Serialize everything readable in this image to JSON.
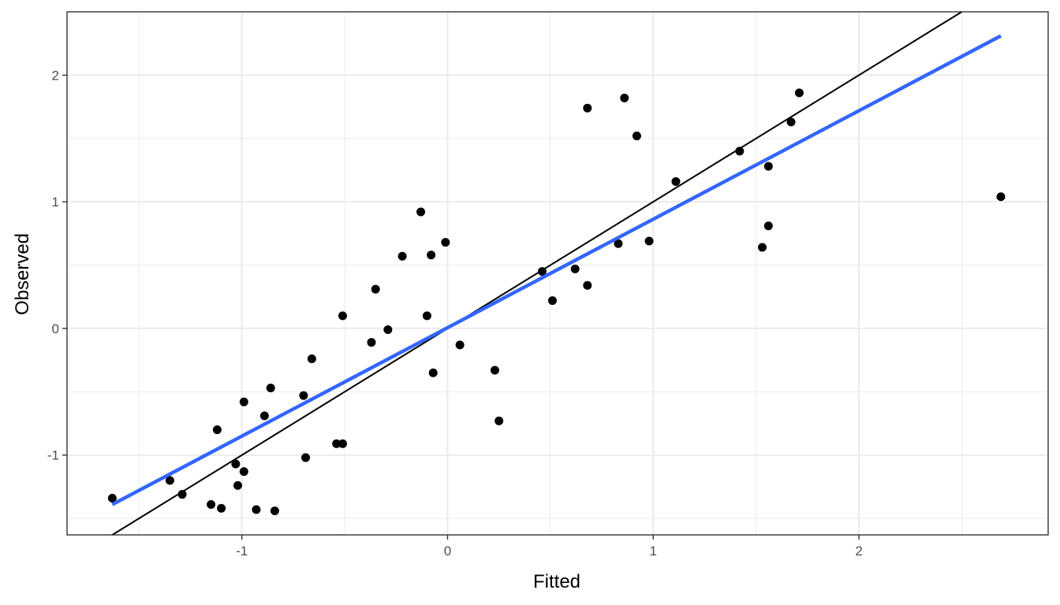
{
  "chart_data": {
    "type": "scatter",
    "xlabel": "Fitted",
    "ylabel": "Observed",
    "xlim": [
      -1.85,
      2.92
    ],
    "ylim": [
      -1.63,
      2.5
    ],
    "x_ticks": [
      -1,
      0,
      1,
      2
    ],
    "x_tick_labels": [
      "-1",
      "0",
      "1",
      "2"
    ],
    "y_ticks": [
      -1,
      0,
      1,
      2
    ],
    "y_tick_labels": [
      "-1",
      "0",
      "1",
      "2"
    ],
    "grid": true,
    "points": [
      {
        "x": -1.63,
        "y": -1.34
      },
      {
        "x": -1.35,
        "y": -1.2
      },
      {
        "x": -1.29,
        "y": -1.31
      },
      {
        "x": -1.15,
        "y": -1.39
      },
      {
        "x": -1.12,
        "y": -0.8
      },
      {
        "x": -1.1,
        "y": -1.42
      },
      {
        "x": -1.03,
        "y": -1.07
      },
      {
        "x": -1.02,
        "y": -1.24
      },
      {
        "x": -0.99,
        "y": -0.58
      },
      {
        "x": -0.99,
        "y": -1.13
      },
      {
        "x": -0.93,
        "y": -1.43
      },
      {
        "x": -0.89,
        "y": -0.69
      },
      {
        "x": -0.86,
        "y": -0.47
      },
      {
        "x": -0.84,
        "y": -1.44
      },
      {
        "x": -0.7,
        "y": -0.53
      },
      {
        "x": -0.69,
        "y": -1.02
      },
      {
        "x": -0.66,
        "y": -0.24
      },
      {
        "x": -0.54,
        "y": -0.91
      },
      {
        "x": -0.51,
        "y": -0.91
      },
      {
        "x": -0.51,
        "y": 0.1
      },
      {
        "x": -0.37,
        "y": -0.11
      },
      {
        "x": -0.35,
        "y": 0.31
      },
      {
        "x": -0.29,
        "y": -0.01
      },
      {
        "x": -0.22,
        "y": 0.57
      },
      {
        "x": -0.13,
        "y": 0.92
      },
      {
        "x": -0.1,
        "y": 0.1
      },
      {
        "x": -0.08,
        "y": 0.58
      },
      {
        "x": -0.07,
        "y": -0.35
      },
      {
        "x": -0.01,
        "y": 0.68
      },
      {
        "x": 0.06,
        "y": -0.13
      },
      {
        "x": 0.23,
        "y": -0.33
      },
      {
        "x": 0.25,
        "y": -0.73
      },
      {
        "x": 0.46,
        "y": 0.45
      },
      {
        "x": 0.51,
        "y": 0.22
      },
      {
        "x": 0.62,
        "y": 0.47
      },
      {
        "x": 0.68,
        "y": 1.74
      },
      {
        "x": 0.68,
        "y": 0.34
      },
      {
        "x": 0.83,
        "y": 0.67
      },
      {
        "x": 0.86,
        "y": 1.82
      },
      {
        "x": 0.92,
        "y": 1.52
      },
      {
        "x": 0.98,
        "y": 0.69
      },
      {
        "x": 1.11,
        "y": 1.16
      },
      {
        "x": 1.42,
        "y": 1.4
      },
      {
        "x": 1.53,
        "y": 0.64
      },
      {
        "x": 1.56,
        "y": 1.28
      },
      {
        "x": 1.56,
        "y": 0.81
      },
      {
        "x": 1.67,
        "y": 1.63
      },
      {
        "x": 1.71,
        "y": 1.86
      },
      {
        "x": 2.69,
        "y": 1.04
      }
    ],
    "reference_line": {
      "slope": 1,
      "intercept": 0,
      "color": "#000000"
    },
    "fit_line": {
      "x": [
        -1.63,
        2.69
      ],
      "y": [
        -1.39,
        2.31
      ],
      "color": "#3366FF"
    },
    "point_color": "#000000"
  }
}
